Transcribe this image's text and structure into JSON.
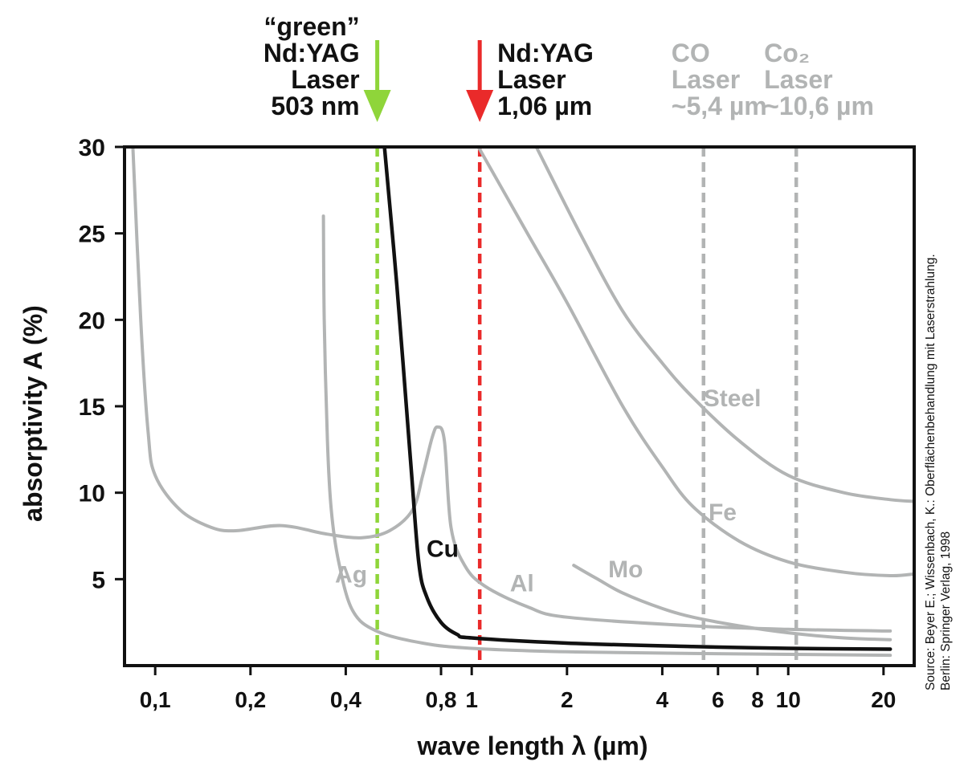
{
  "chart_data": {
    "type": "line",
    "xscale": "log",
    "xlabel": "wave length λ (µm)",
    "ylabel": "absorptivity A (%)",
    "xlim": [
      0.08,
      25
    ],
    "ylim": [
      0,
      30
    ],
    "x_ticks": [
      {
        "value": 0.1,
        "label": "0,1"
      },
      {
        "value": 0.2,
        "label": "0,2"
      },
      {
        "value": 0.4,
        "label": "0,4"
      },
      {
        "value": 0.8,
        "label": "0,8"
      },
      {
        "value": 1,
        "label": "1"
      },
      {
        "value": 2,
        "label": "2"
      },
      {
        "value": 4,
        "label": "4"
      },
      {
        "value": 6,
        "label": "6"
      },
      {
        "value": 8,
        "label": "8"
      },
      {
        "value": 10,
        "label": "10"
      },
      {
        "value": 20,
        "label": "20"
      }
    ],
    "y_ticks": [
      {
        "value": 5,
        "label": "5"
      },
      {
        "value": 10,
        "label": "10"
      },
      {
        "value": 15,
        "label": "15"
      },
      {
        "value": 20,
        "label": "20"
      },
      {
        "value": 25,
        "label": "25"
      },
      {
        "value": 30,
        "label": "30"
      }
    ],
    "series": [
      {
        "name": "Cu",
        "color": "#111111",
        "label_at": [
          0.72,
          6.3
        ],
        "points": [
          [
            0.53,
            30
          ],
          [
            0.58,
            22
          ],
          [
            0.64,
            12
          ],
          [
            0.68,
            6
          ],
          [
            0.72,
            4
          ],
          [
            0.8,
            2.5
          ],
          [
            0.9,
            1.8
          ],
          [
            1.0,
            1.6
          ],
          [
            2,
            1.3
          ],
          [
            5,
            1.1
          ],
          [
            10,
            1.0
          ],
          [
            21,
            0.95
          ]
        ]
      },
      {
        "name": "Ag",
        "color": "#b2b4b4",
        "label_at": [
          0.37,
          4.8
        ],
        "points": [
          [
            0.34,
            26
          ],
          [
            0.342,
            20
          ],
          [
            0.35,
            13
          ],
          [
            0.36,
            9
          ],
          [
            0.38,
            6
          ],
          [
            0.42,
            3.2
          ],
          [
            0.5,
            2.0
          ],
          [
            0.7,
            1.3
          ],
          [
            1.0,
            1.0
          ],
          [
            2,
            0.8
          ],
          [
            5,
            0.7
          ],
          [
            21,
            0.6
          ]
        ]
      },
      {
        "name": "Al",
        "color": "#b2b4b4",
        "label_at": [
          1.32,
          4.3
        ],
        "points": [
          [
            0.085,
            30
          ],
          [
            0.09,
            20
          ],
          [
            0.095,
            13.5
          ],
          [
            0.1,
            11
          ],
          [
            0.12,
            9
          ],
          [
            0.15,
            8
          ],
          [
            0.18,
            7.8
          ],
          [
            0.25,
            8.1
          ],
          [
            0.35,
            7.6
          ],
          [
            0.45,
            7.4
          ],
          [
            0.55,
            7.8
          ],
          [
            0.65,
            9
          ],
          [
            0.7,
            11
          ],
          [
            0.75,
            13.2
          ],
          [
            0.78,
            13.8
          ],
          [
            0.82,
            13
          ],
          [
            0.86,
            8
          ],
          [
            0.95,
            5.8
          ],
          [
            1.1,
            4.6
          ],
          [
            1.5,
            3.4
          ],
          [
            2,
            2.8
          ],
          [
            5,
            2.3
          ],
          [
            10,
            2.1
          ],
          [
            21,
            2.0
          ]
        ]
      },
      {
        "name": "Mo",
        "color": "#b2b4b4",
        "label_at": [
          2.7,
          5.1
        ],
        "points": [
          [
            2.1,
            5.8
          ],
          [
            2.5,
            5.0
          ],
          [
            3,
            4.2
          ],
          [
            4,
            3.3
          ],
          [
            5,
            2.8
          ],
          [
            7,
            2.3
          ],
          [
            10,
            1.9
          ],
          [
            15,
            1.6
          ],
          [
            21,
            1.5
          ]
        ]
      },
      {
        "name": "Fe",
        "color": "#b2b4b4",
        "label_at": [
          5.6,
          8.4
        ],
        "points": [
          [
            1.05,
            30
          ],
          [
            1.5,
            25
          ],
          [
            2,
            21
          ],
          [
            3,
            15
          ],
          [
            4,
            11.5
          ],
          [
            5,
            9.2
          ],
          [
            7,
            7.2
          ],
          [
            10,
            6
          ],
          [
            15,
            5.4
          ],
          [
            21,
            5.2
          ],
          [
            25,
            5.3
          ]
        ]
      },
      {
        "name": "Steel",
        "color": "#b2b4b4",
        "label_at": [
          5.4,
          15.0
        ],
        "points": [
          [
            1.6,
            30
          ],
          [
            2.2,
            25
          ],
          [
            3,
            20.5
          ],
          [
            4,
            17.5
          ],
          [
            5,
            15.5
          ],
          [
            7,
            13
          ],
          [
            10,
            11
          ],
          [
            15,
            10
          ],
          [
            21,
            9.6
          ],
          [
            25,
            9.5
          ]
        ]
      }
    ],
    "lasers": [
      {
        "lines": [
          "“green”",
          "Nd:YAG",
          "Laser",
          "503 nm"
        ],
        "wavelength": 0.503,
        "color": "#8fd53a",
        "text_color": "#111111",
        "arrow": true
      },
      {
        "lines": [
          "Nd:YAG",
          "Laser",
          "1,06 µm"
        ],
        "wavelength": 1.06,
        "color": "#ea2a2a",
        "text_color": "#111111",
        "arrow": true
      },
      {
        "lines": [
          "CO",
          "Laser",
          "~5,4 µm"
        ],
        "wavelength": 5.4,
        "color": "#b2b4b4",
        "text_color": "#b2b4b4",
        "arrow": false
      },
      {
        "lines": [
          "Co₂",
          "Laser",
          "~10,6 µm"
        ],
        "wavelength": 10.6,
        "color": "#b2b4b4",
        "text_color": "#b2b4b4",
        "arrow": false
      }
    ],
    "source": [
      "Source: Beyer E.; Wissenbach, K.: Oberflächenbehandlung mit Laserstrahlung.",
      "Berlin: Springer Verlag, 1998"
    ],
    "grid": false,
    "legend": "none"
  }
}
